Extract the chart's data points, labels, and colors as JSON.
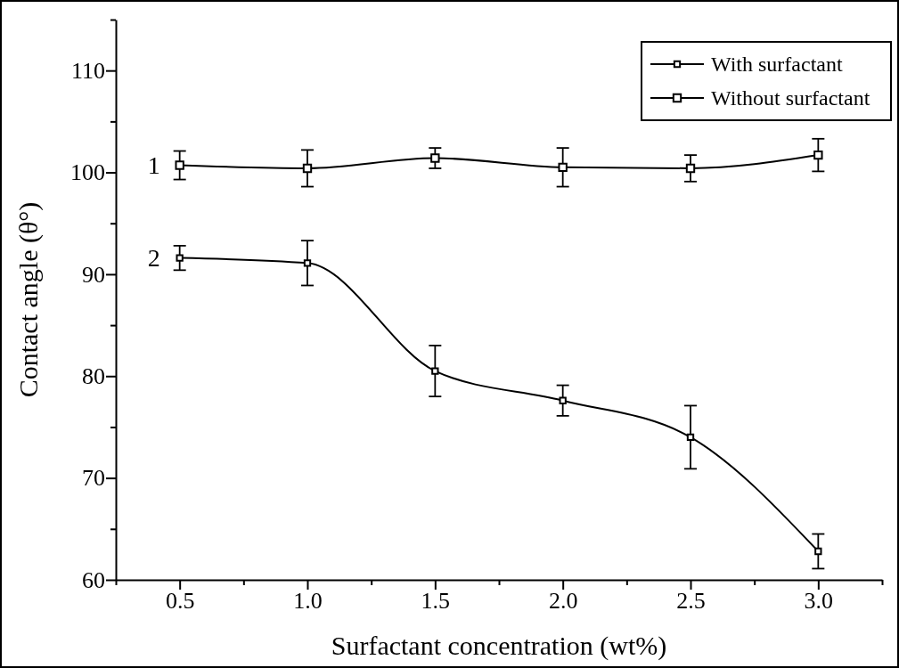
{
  "chart_data": {
    "type": "line",
    "xlabel": "Surfactant concentration (wt%)",
    "ylabel": "Contact angle (θ°)",
    "x": [
      0.5,
      1.0,
      1.5,
      2.0,
      2.5,
      3.0
    ],
    "series": [
      {
        "name": "With surfactant",
        "color": "#000000",
        "values": [
          91.6,
          91.1,
          80.5,
          77.6,
          74.0,
          62.8
        ],
        "errors": [
          1.2,
          2.2,
          2.5,
          1.5,
          3.1,
          1.7
        ]
      },
      {
        "name": "Without surfactant",
        "color": "#000000",
        "values": [
          100.7,
          100.4,
          101.4,
          100.5,
          100.4,
          101.7
        ],
        "errors": [
          1.4,
          1.8,
          1.0,
          1.9,
          1.3,
          1.6
        ]
      }
    ],
    "xlim": [
      0.25,
      3.25
    ],
    "xticks": [
      {
        "value": 0.25,
        "label": null
      },
      0.5,
      {
        "value": 0.75,
        "label": null
      },
      {
        "value": 1.0,
        "label": "1.0"
      },
      {
        "value": 1.25,
        "label": null
      },
      1.5,
      {
        "value": 1.75,
        "label": null
      },
      {
        "value": 2.0,
        "label": "2.0"
      },
      {
        "value": 2.25,
        "label": null
      },
      2.5,
      {
        "value": 2.75,
        "label": null
      },
      {
        "value": 3.0,
        "label": "3.0"
      },
      {
        "value": 3.25,
        "label": null
      }
    ],
    "ylim": [
      60,
      115
    ],
    "yticks": [
      60,
      {
        "value": 65,
        "label": null
      },
      70,
      {
        "value": 75,
        "label": null
      },
      80,
      {
        "value": 85,
        "label": null
      },
      90,
      {
        "value": 95,
        "label": null
      },
      100,
      {
        "value": 105,
        "label": null
      },
      110,
      {
        "value": 115,
        "label": null
      }
    ],
    "annotations": [
      {
        "text": "2",
        "x": 0.5,
        "y": 91.6
      },
      {
        "text": "1",
        "x": 0.5,
        "y": 100.7
      }
    ],
    "legend": "top right",
    "marker": "square",
    "line_style": "solid",
    "grid": false
  }
}
